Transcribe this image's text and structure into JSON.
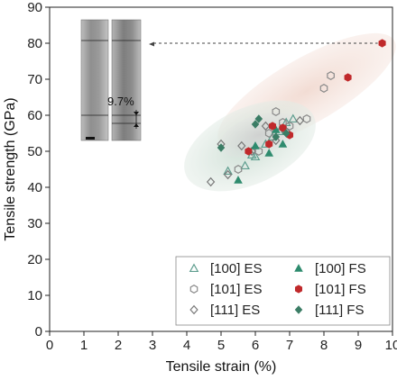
{
  "chart_data": {
    "type": "scatter",
    "xlabel": "Tensile strain (%)",
    "ylabel": "Tensile strength (GPa)",
    "xlim": [
      0,
      10
    ],
    "ylim": [
      0,
      90
    ],
    "xticks": [
      "0",
      "1",
      "2",
      "3",
      "4",
      "5",
      "6",
      "7",
      "8",
      "9",
      "10"
    ],
    "yticks": [
      "0",
      "10",
      "20",
      "30",
      "40",
      "50",
      "60",
      "70",
      "80",
      "90"
    ],
    "grid": false,
    "legend": "bottom-right",
    "inset_annotation": "9.7%",
    "series": [
      {
        "name": "[100] ES",
        "marker": "triangle-open",
        "color": "#5f9e8f",
        "points": [
          [
            5.2,
            44.5
          ],
          [
            5.7,
            46
          ],
          [
            5.9,
            49
          ],
          [
            6.0,
            48.5
          ],
          [
            6.3,
            52
          ],
          [
            6.5,
            54
          ],
          [
            6.7,
            55.5
          ],
          [
            6.9,
            58
          ],
          [
            7.1,
            59
          ]
        ]
      },
      {
        "name": "[101] ES",
        "marker": "hexagon-open",
        "color": "#8a8a8a",
        "points": [
          [
            5.5,
            45
          ],
          [
            6.1,
            50
          ],
          [
            6.4,
            55
          ],
          [
            6.6,
            61
          ],
          [
            6.8,
            58
          ],
          [
            7.0,
            57
          ],
          [
            7.5,
            59
          ],
          [
            8.0,
            67.5
          ],
          [
            8.2,
            71
          ]
        ]
      },
      {
        "name": "[111] ES",
        "marker": "diamond-open",
        "color": "#7a7a7a",
        "points": [
          [
            4.7,
            41.5
          ],
          [
            5.0,
            52
          ],
          [
            5.2,
            43.5
          ],
          [
            5.6,
            51.5
          ],
          [
            5.9,
            50
          ],
          [
            6.3,
            57
          ],
          [
            6.6,
            53
          ],
          [
            6.9,
            55.5
          ],
          [
            7.3,
            58.5
          ]
        ]
      },
      {
        "name": "[100] FS",
        "marker": "triangle",
        "color": "#2e8b6e",
        "points": [
          [
            5.5,
            42
          ],
          [
            6.0,
            51.5
          ],
          [
            6.4,
            49.5
          ],
          [
            6.6,
            56
          ],
          [
            6.8,
            52
          ]
        ]
      },
      {
        "name": "[101] FS",
        "marker": "hexagon",
        "color": "#c0292b",
        "points": [
          [
            5.8,
            50
          ],
          [
            6.4,
            52
          ],
          [
            6.5,
            57
          ],
          [
            6.8,
            56.5
          ],
          [
            7.0,
            54.5
          ],
          [
            8.7,
            70.5
          ],
          [
            9.7,
            80
          ]
        ]
      },
      {
        "name": "[111] FS",
        "marker": "diamond",
        "color": "#3b7d65",
        "points": [
          [
            5.0,
            51
          ],
          [
            6.0,
            57.5
          ],
          [
            6.1,
            59
          ],
          [
            6.6,
            54
          ],
          [
            6.9,
            55
          ]
        ]
      }
    ]
  }
}
